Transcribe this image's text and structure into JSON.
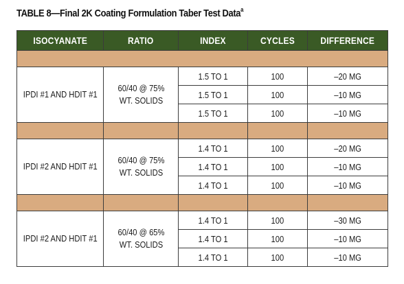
{
  "title": {
    "text": "TABLE 8—Final 2K Coating Formulation Taber Test Data",
    "footnote_marker": "a"
  },
  "table": {
    "headers": [
      "ISOCYANATE",
      "RATIO",
      "INDEX",
      "CYCLES",
      "DIFFERENCE"
    ],
    "colors": {
      "header_bg": "#3a5a25",
      "separator_bg": "#d9ab80",
      "border": "#3b3b3b"
    },
    "groups": [
      {
        "isocyanate": "IPDI #1 AND HDIT #1",
        "ratio_line1": "60/40 @ 75%",
        "ratio_line2": "WT. SOLIDS",
        "rows": [
          {
            "index": "1.5 TO 1",
            "cycles": "100",
            "difference": "–20 MG"
          },
          {
            "index": "1.5 TO 1",
            "cycles": "100",
            "difference": "–10 MG"
          },
          {
            "index": "1.5 TO 1",
            "cycles": "100",
            "difference": "–10 MG"
          }
        ]
      },
      {
        "isocyanate": "IPDI #2 AND HDIT #1",
        "ratio_line1": "60/40 @ 75%",
        "ratio_line2": "WT. SOLIDS",
        "rows": [
          {
            "index": "1.4 TO 1",
            "cycles": "100",
            "difference": "–20 MG"
          },
          {
            "index": "1.4 TO 1",
            "cycles": "100",
            "difference": "–10 MG"
          },
          {
            "index": "1.4 TO 1",
            "cycles": "100",
            "difference": "–10 MG"
          }
        ]
      },
      {
        "isocyanate": "IPDI #2 AND HDIT #1",
        "ratio_line1": "60/40 @ 65%",
        "ratio_line2": "WT. SOLIDS",
        "rows": [
          {
            "index": "1.4 TO 1",
            "cycles": "100",
            "difference": "–30 MG"
          },
          {
            "index": "1.4 TO 1",
            "cycles": "100",
            "difference": "–10 MG"
          },
          {
            "index": "1.4 TO 1",
            "cycles": "100",
            "difference": "–10 MG"
          }
        ]
      }
    ]
  }
}
